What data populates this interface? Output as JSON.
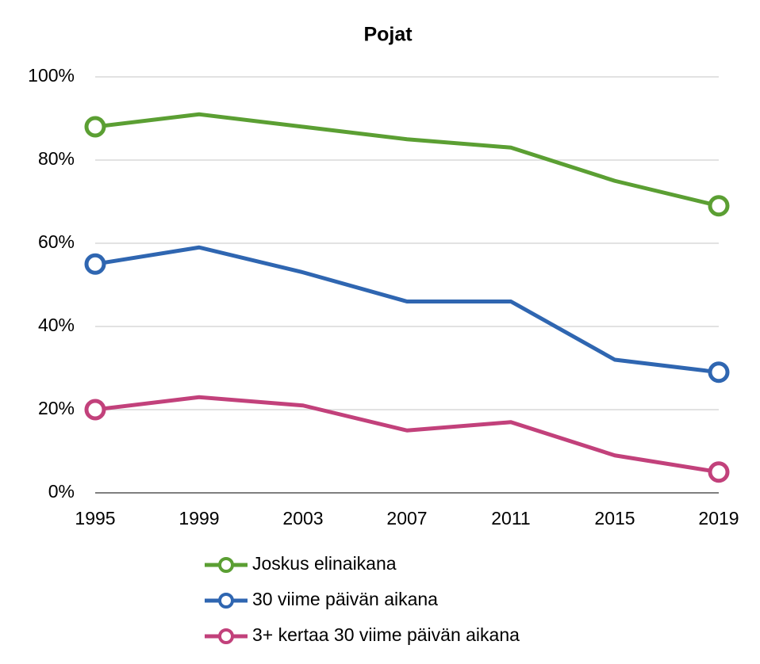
{
  "chart_data": {
    "type": "line",
    "title": "Pojat",
    "x": [
      1995,
      1999,
      2003,
      2007,
      2011,
      2015,
      2019
    ],
    "xlim": [
      1995,
      2019
    ],
    "xticks": [
      1995,
      1999,
      2003,
      2007,
      2011,
      2015,
      2019
    ],
    "ylim": [
      0,
      100
    ],
    "yticks": [
      {
        "value": 0,
        "label": "0%"
      },
      {
        "value": 20,
        "label": "20%"
      },
      {
        "value": 40,
        "label": "40%"
      },
      {
        "value": 60,
        "label": "60%"
      },
      {
        "value": 80,
        "label": "80%"
      },
      {
        "value": 100,
        "label": "100%"
      }
    ],
    "grid": true,
    "legend": "bottom",
    "series": [
      {
        "name": "Joskus elinaikana",
        "color": "#5b9f33",
        "values": [
          88,
          91,
          88,
          85,
          83,
          75,
          69
        ]
      },
      {
        "name": "30 viime päivän aikana",
        "color": "#2f66b1",
        "values": [
          55,
          59,
          53,
          46,
          46,
          32,
          29
        ]
      },
      {
        "name": "3+ kertaa 30 viime päivän aikana",
        "color": "#c2417b",
        "values": [
          20,
          23,
          21,
          15,
          17,
          9,
          5
        ]
      }
    ]
  }
}
